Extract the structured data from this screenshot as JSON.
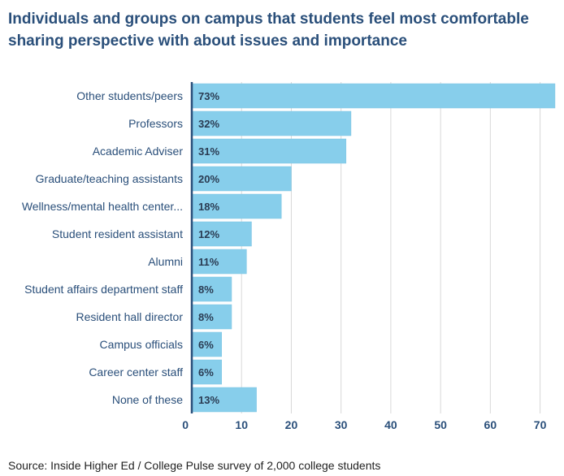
{
  "colors": {
    "bar": "#87ceeb",
    "bar_stroke": "#7fc4e3",
    "axis": "#2a4f7a",
    "grid": "#d8d8d8",
    "title": "#2a4f7a"
  },
  "chart_data": {
    "type": "bar",
    "orientation": "horizontal",
    "title": "Individuals and groups on campus that students feel most comfortable sharing perspective with about issues and importance",
    "categories": [
      "Other students/peers",
      "Professors",
      "Academic Adviser",
      "Graduate/teaching assistants",
      "Wellness/mental health center...",
      "Student resident assistant",
      "Alumni",
      "Student affairs department staff",
      "Resident hall director",
      "Campus officials",
      "Career center staff",
      "None of these"
    ],
    "values": [
      73,
      32,
      31,
      20,
      18,
      12,
      11,
      8,
      8,
      6,
      6,
      13
    ],
    "value_labels": [
      "73%",
      "32%",
      "31%",
      "20%",
      "18%",
      "12%",
      "11%",
      "8%",
      "8%",
      "6%",
      "6%",
      "13%"
    ],
    "xticks": [
      0,
      10,
      20,
      30,
      40,
      50,
      60,
      70
    ],
    "xtick_labels": [
      "0",
      "10",
      "20",
      "30",
      "40",
      "50",
      "60",
      "70"
    ],
    "xlim": [
      0,
      73.5
    ],
    "xlabel": "",
    "ylabel": "",
    "grid": true
  },
  "source": "Source: Inside Higher Ed / College Pulse survey of 2,000 college students"
}
